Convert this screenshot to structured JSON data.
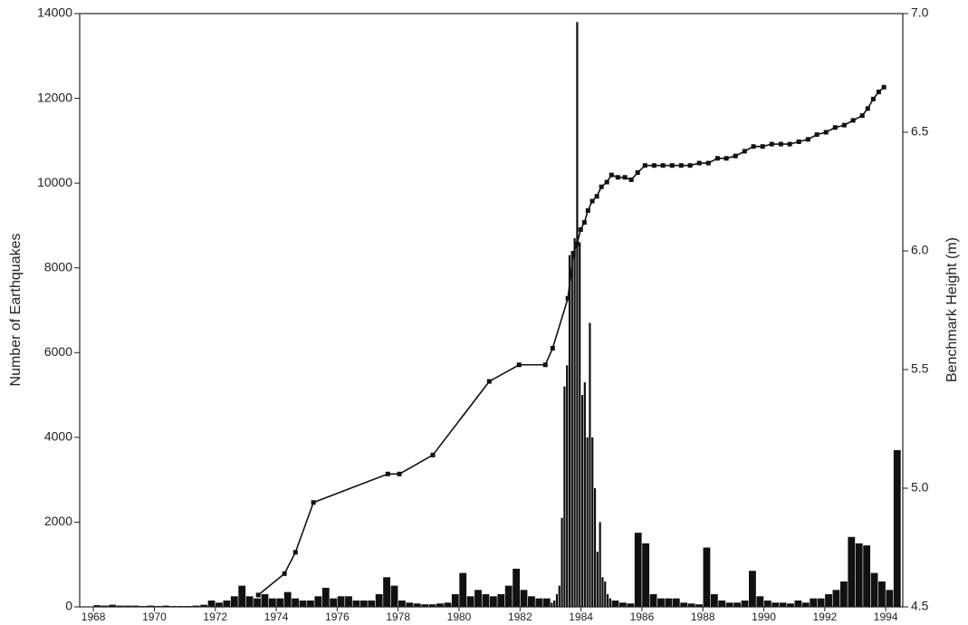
{
  "chart_data": {
    "type": "histogram",
    "y_label": "Number of Earthquakes",
    "y2_label": "Benchmark Height (m)",
    "color": "#111111",
    "bins": [
      1968,
      1968.25,
      1968.5,
      1968.75,
      1969,
      1969.25,
      1969.5,
      1969.75,
      1970,
      1970.25,
      1970.5,
      1970.75,
      1971,
      1971.25,
      1971.5,
      1971.75,
      1972,
      1972.25,
      1972.5,
      1972.75,
      1973,
      1973.25,
      1973.5,
      1973.75,
      1974,
      1974.25,
      1974.5,
      1974.75,
      1975,
      1975.25,
      1975.5,
      1975.75,
      1976,
      1976.25,
      1976.5,
      1976.75,
      1977,
      1977.25,
      1977.5,
      1977.75,
      1978,
      1978.25,
      1978.5,
      1978.75,
      1979,
      1979.25,
      1979.5,
      1979.75,
      1980,
      1980.25,
      1980.5,
      1980.75,
      1981,
      1981.25,
      1981.5,
      1981.75,
      1982,
      1982.25,
      1982.5,
      1982.75,
      1983,
      1983.083,
      1983.167,
      1983.25,
      1983.333,
      1983.417,
      1983.5,
      1983.583,
      1983.667,
      1983.75,
      1983.833,
      1983.917,
      1984,
      1984.083,
      1984.167,
      1984.25,
      1984.333,
      1984.417,
      1984.5,
      1984.583,
      1984.667,
      1984.75,
      1984.833,
      1984.917,
      1985,
      1985.25,
      1985.5,
      1985.75,
      1986,
      1986.25,
      1986.5,
      1986.75,
      1987,
      1987.25,
      1987.5,
      1987.75,
      1988,
      1988.25,
      1988.5,
      1988.75,
      1989,
      1989.25,
      1989.5,
      1989.75,
      1990,
      1990.25,
      1990.5,
      1990.75,
      1991,
      1991.25,
      1991.5,
      1991.75,
      1992,
      1992.25,
      1992.5,
      1992.75,
      1993,
      1993.25,
      1993.5,
      1993.75,
      1994,
      1994.25,
      1994.5
    ],
    "values": [
      40,
      30,
      50,
      30,
      30,
      30,
      20,
      30,
      20,
      30,
      20,
      20,
      20,
      30,
      50,
      150,
      100,
      150,
      250,
      500,
      250,
      200,
      300,
      200,
      200,
      350,
      200,
      150,
      150,
      250,
      450,
      200,
      250,
      250,
      150,
      150,
      150,
      300,
      700,
      500,
      150,
      100,
      80,
      60,
      60,
      80,
      100,
      300,
      800,
      250,
      400,
      300,
      250,
      300,
      500,
      900,
      400,
      250,
      200,
      200,
      100,
      150,
      300,
      500,
      2100,
      5200,
      5700,
      8300,
      8400,
      8700,
      13800,
      8600,
      5000,
      5300,
      4000,
      6700,
      4000,
      2800,
      1300,
      2000,
      700,
      600,
      300,
      200,
      150,
      100,
      80,
      1750,
      1500,
      300,
      200,
      200,
      200,
      100,
      80,
      60,
      1400,
      300,
      150,
      100,
      100,
      150,
      850,
      250,
      150,
      100,
      100,
      80,
      150,
      100,
      200,
      200,
      300,
      400,
      600,
      1650,
      1500,
      1450,
      800,
      600,
      400,
      3700
    ],
    "line": {
      "axis": "y2",
      "color": "#111111",
      "x": [
        1973.41,
        1974.27,
        1974.63,
        1975.22,
        1977.66,
        1978.04,
        1979.14,
        1980.99,
        1981.97,
        1982.83,
        1983.07,
        1983.57,
        1983.75,
        1983.87,
        1983.99,
        1984.11,
        1984.23,
        1984.37,
        1984.52,
        1984.67,
        1984.85,
        1985.0,
        1985.21,
        1985.44,
        1985.65,
        1985.86,
        1986.1,
        1986.4,
        1986.69,
        1986.99,
        1987.29,
        1987.58,
        1987.88,
        1988.18,
        1988.48,
        1988.77,
        1989.07,
        1989.37,
        1989.66,
        1989.96,
        1990.26,
        1990.56,
        1990.85,
        1991.15,
        1991.45,
        1991.74,
        1992.04,
        1992.34,
        1992.64,
        1992.93,
        1993.23,
        1993.41,
        1993.59,
        1993.77,
        1993.94
      ],
      "values": [
        4.55,
        4.64,
        4.73,
        4.94,
        5.06,
        5.06,
        5.14,
        5.45,
        5.52,
        5.52,
        5.59,
        5.8,
        5.99,
        6.03,
        6.09,
        6.12,
        6.17,
        6.21,
        6.23,
        6.27,
        6.29,
        6.32,
        6.31,
        6.31,
        6.3,
        6.33,
        6.36,
        6.36,
        6.36,
        6.36,
        6.36,
        6.36,
        6.37,
        6.37,
        6.39,
        6.39,
        6.4,
        6.42,
        6.44,
        6.44,
        6.45,
        6.45,
        6.45,
        6.46,
        6.47,
        6.49,
        6.5,
        6.52,
        6.53,
        6.55,
        6.57,
        6.6,
        6.64,
        6.67,
        6.69
      ]
    },
    "xlim": [
      1967.55,
      1994.56
    ],
    "xticks": [
      1968,
      1970,
      1972,
      1974,
      1976,
      1978,
      1980,
      1982,
      1984,
      1986,
      1988,
      1990,
      1992,
      1994
    ],
    "ylim": [
      0,
      14000
    ],
    "yticks": [
      0,
      2000,
      4000,
      6000,
      8000,
      10000,
      12000,
      14000
    ],
    "y2lim": [
      4.5,
      7.0
    ],
    "y2ticks": [
      4.5,
      {
        "value": 5,
        "label": "5.0"
      },
      5.5,
      {
        "value": 6,
        "label": "6.0"
      },
      6.5,
      {
        "value": 7,
        "label": "7.0"
      }
    ]
  }
}
